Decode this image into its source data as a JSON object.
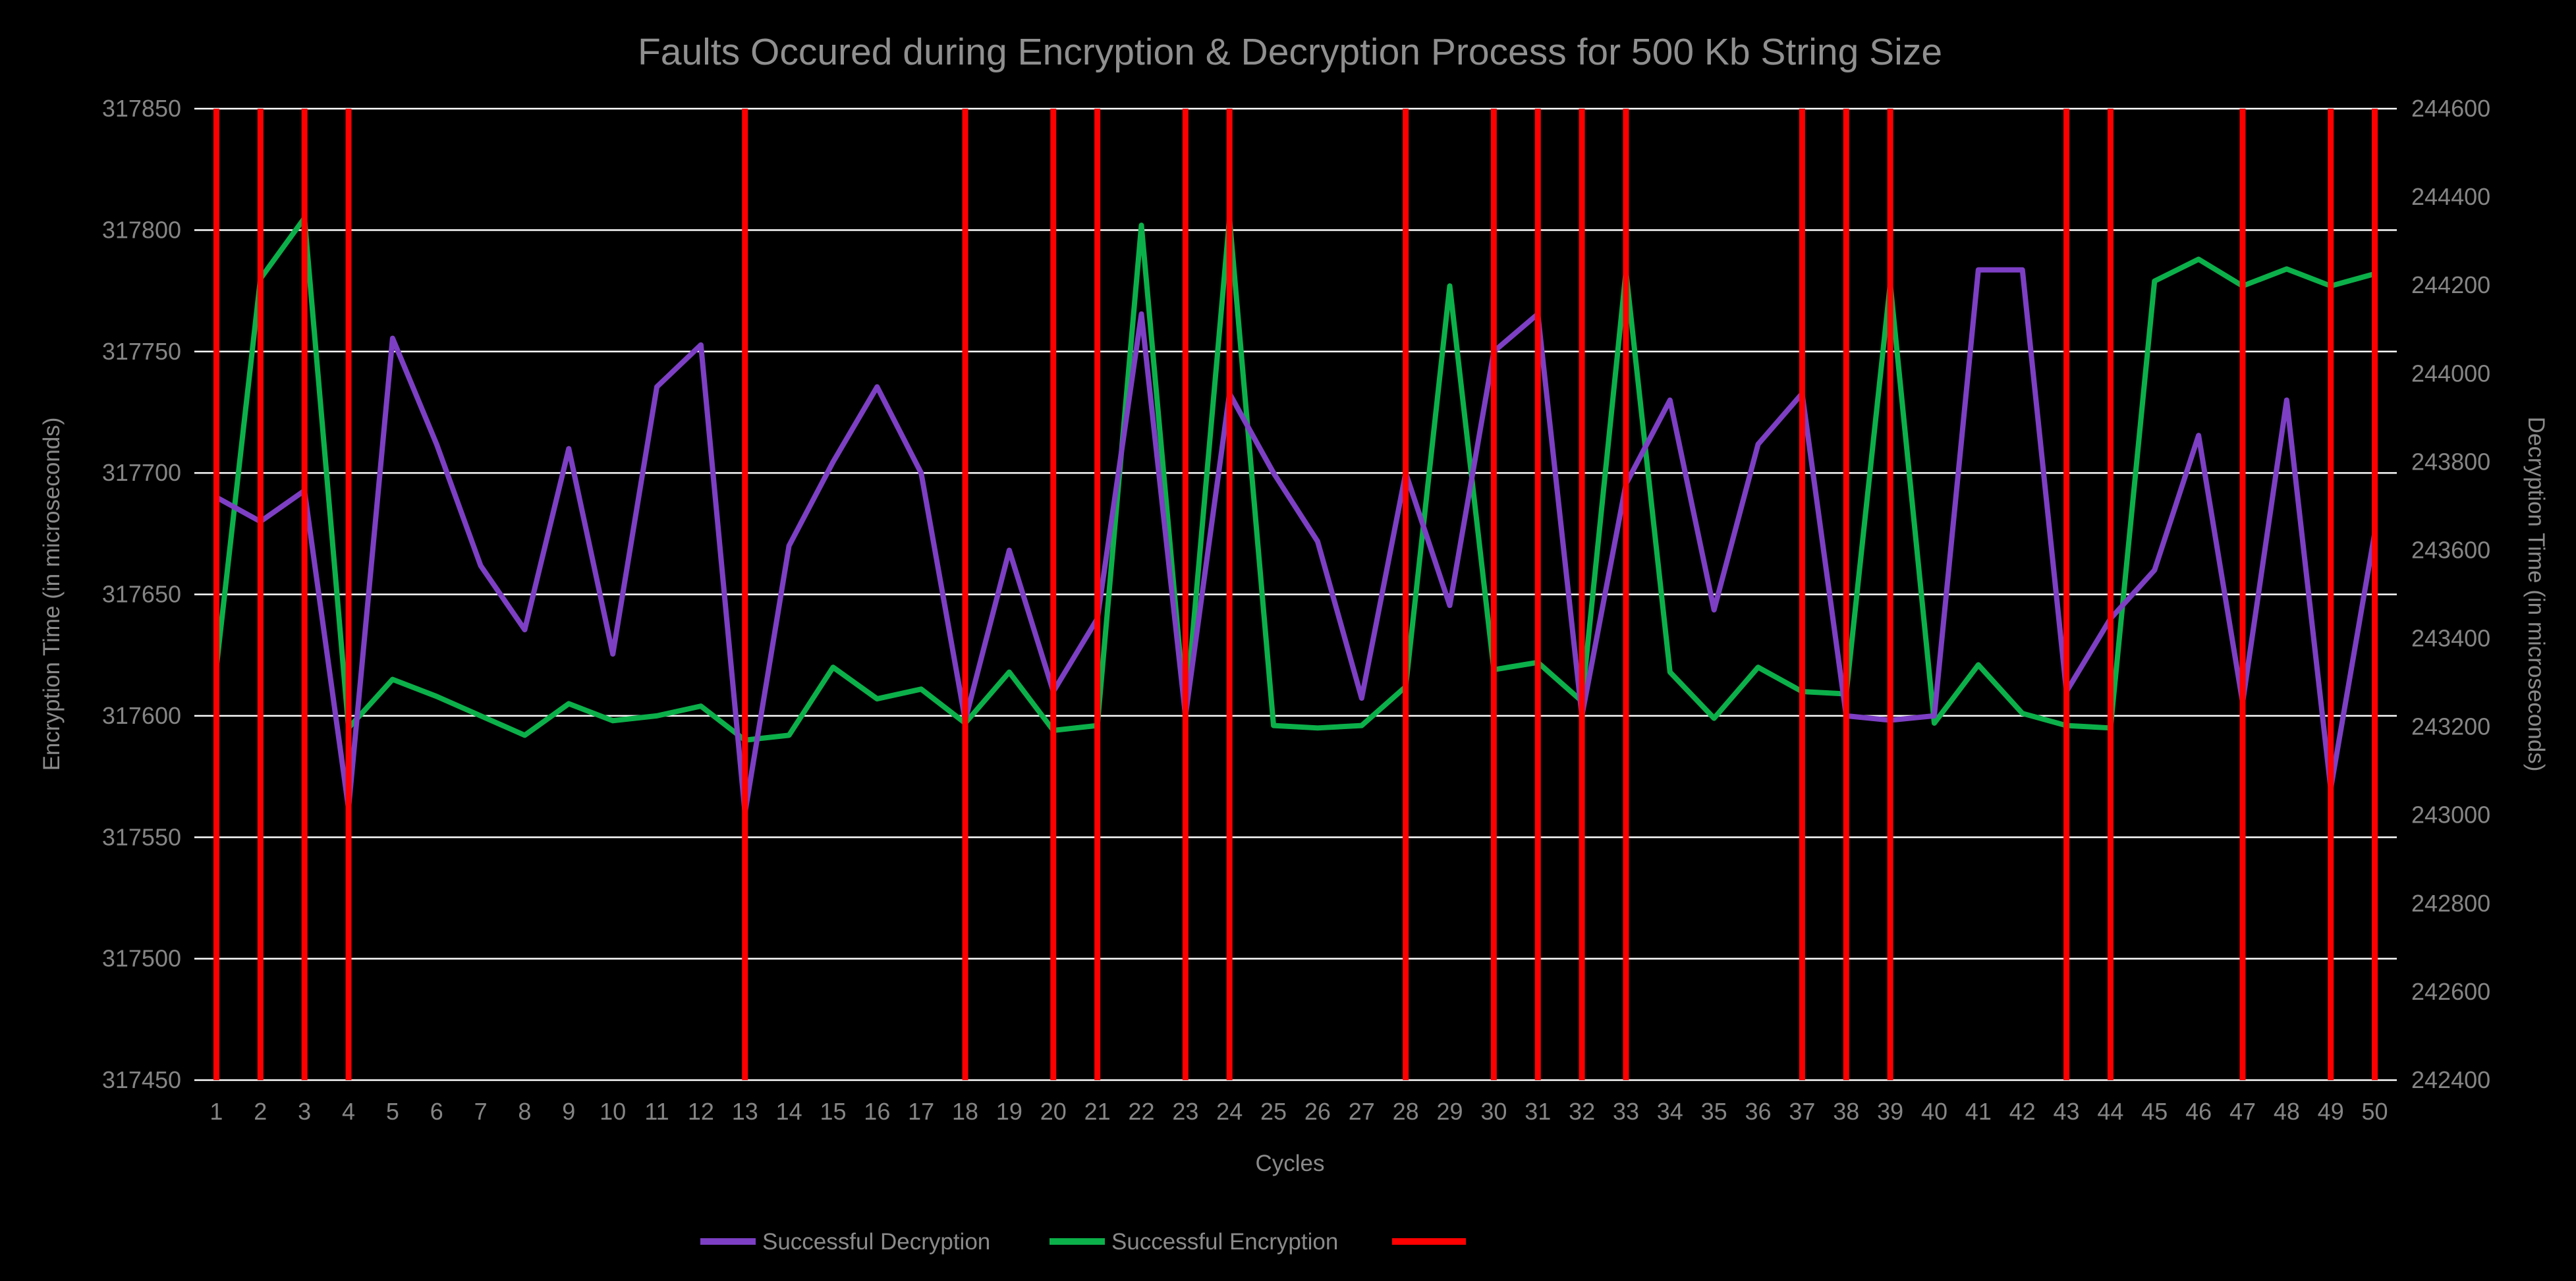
{
  "colors": {
    "background": "#000000",
    "grid": "#FFFFFF",
    "text": "#8A8A8A",
    "decryption": "#7D3FC4",
    "encryption": "#0CB04A",
    "fault": "#FF0000"
  },
  "chart_data": {
    "type": "line",
    "title": "Faults Occured during Encryption & Decryption Process for 500 Kb String Size",
    "xlabel": "Cycles",
    "ylabel_left": "Encryption Time (in microseconds)",
    "ylabel_right": "Decryption Time (in microseconds)",
    "grid": "horizontal",
    "legend_position": "bottom",
    "x": [
      1,
      2,
      3,
      4,
      5,
      6,
      7,
      8,
      9,
      10,
      11,
      12,
      13,
      14,
      15,
      16,
      17,
      18,
      19,
      20,
      21,
      22,
      23,
      24,
      25,
      26,
      27,
      28,
      29,
      30,
      31,
      32,
      33,
      34,
      35,
      36,
      37,
      38,
      39,
      40,
      41,
      42,
      43,
      44,
      45,
      46,
      47,
      48,
      49,
      50
    ],
    "left_axis": {
      "min": 317450,
      "max": 317850,
      "step": 50
    },
    "right_axis": {
      "min": 242400,
      "max": 244600,
      "step": 200
    },
    "series": [
      {
        "name": "Successful Encryption",
        "axis": "left",
        "color": "#0CB04A",
        "values": [
          317620,
          317780,
          317805,
          317595,
          317615,
          317608,
          317600,
          317592,
          317605,
          317598,
          317600,
          317604,
          317590,
          317592,
          317620,
          317607,
          317611,
          317597,
          317618,
          317594,
          317596,
          317802,
          317600,
          317805,
          317596,
          317595,
          317596,
          317612,
          317777,
          317619,
          317622,
          317606,
          317783,
          317618,
          317599,
          317620,
          317610,
          317609,
          317778,
          317597,
          317621,
          317601,
          317596,
          317595,
          317779,
          317788,
          317777,
          317784,
          317777,
          317782
        ]
      },
      {
        "name": "Successful Decryption",
        "axis": "right",
        "color": "#7D3FC4",
        "values": [
          243720,
          243665,
          243735,
          243015,
          244080,
          243840,
          243565,
          243420,
          243830,
          243365,
          243970,
          244065,
          243005,
          243610,
          243800,
          243970,
          243775,
          243215,
          243600,
          243280,
          243445,
          244135,
          243225,
          243955,
          243775,
          243620,
          243265,
          243775,
          243475,
          244050,
          244135,
          243225,
          243750,
          243940,
          243465,
          243840,
          243955,
          243225,
          243215,
          243225,
          244235,
          244235,
          243280,
          243445,
          243555,
          243860,
          243255,
          243940,
          243060,
          243640
        ]
      }
    ],
    "fault_cycles": [
      1,
      2,
      3,
      4,
      13,
      18,
      20,
      21,
      23,
      24,
      28,
      30,
      31,
      32,
      33,
      37,
      38,
      39,
      43,
      44,
      47,
      49,
      50
    ],
    "fault_color": "#FF0000",
    "legend": [
      {
        "label": "Successful Decryption",
        "color": "#7D3FC4"
      },
      {
        "label": "Successful Encryption",
        "color": "#0CB04A"
      },
      {
        "label": "",
        "color": "#FF0000"
      }
    ]
  }
}
